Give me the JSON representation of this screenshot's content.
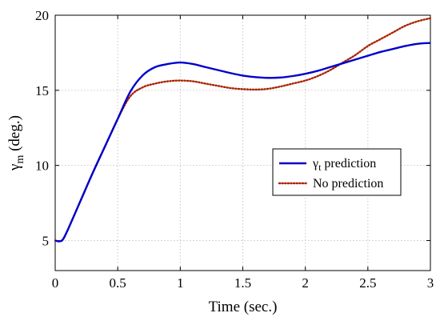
{
  "chart_data": {
    "type": "line",
    "xlabel": "Time (sec.)",
    "ylabel": {
      "main": "γ",
      "sub": "m",
      "rest": " (deg.)"
    },
    "xlim": [
      0,
      3
    ],
    "ylim": [
      3,
      20
    ],
    "xticks": [
      0,
      0.5,
      1,
      1.5,
      2,
      2.5,
      3
    ],
    "xtick_labels": [
      "0",
      "0.5",
      "1",
      "1.5",
      "2",
      "2.5",
      "3"
    ],
    "yticks": [
      5,
      10,
      15,
      20
    ],
    "ytick_labels": [
      "5",
      "10",
      "15",
      "20"
    ],
    "grid": true,
    "legend_position": "center-right",
    "series": [
      {
        "name": {
          "main": "γ",
          "sub": "t",
          "rest": " prediction"
        },
        "color": "#0000cc",
        "style": "solid",
        "x": [
          0,
          0.03,
          0.06,
          0.1,
          0.2,
          0.3,
          0.4,
          0.5,
          0.6,
          0.7,
          0.8,
          0.9,
          1.0,
          1.1,
          1.2,
          1.3,
          1.4,
          1.5,
          1.6,
          1.7,
          1.8,
          1.9,
          2.0,
          2.1,
          2.2,
          2.3,
          2.4,
          2.5,
          2.6,
          2.7,
          2.8,
          2.9,
          3.0
        ],
        "y": [
          5.0,
          4.95,
          5.05,
          5.7,
          7.6,
          9.5,
          11.3,
          13.1,
          14.9,
          16.0,
          16.55,
          16.75,
          16.85,
          16.75,
          16.55,
          16.35,
          16.15,
          15.98,
          15.88,
          15.83,
          15.85,
          15.95,
          16.1,
          16.3,
          16.55,
          16.8,
          17.05,
          17.3,
          17.55,
          17.75,
          17.95,
          18.1,
          18.15
        ]
      },
      {
        "name": "No prediction",
        "color": "#aa2200",
        "style": "dotted",
        "x": [
          0,
          0.03,
          0.06,
          0.1,
          0.2,
          0.3,
          0.4,
          0.5,
          0.6,
          0.7,
          0.8,
          0.9,
          1.0,
          1.1,
          1.2,
          1.3,
          1.4,
          1.5,
          1.6,
          1.7,
          1.8,
          1.9,
          2.0,
          2.1,
          2.2,
          2.3,
          2.4,
          2.5,
          2.6,
          2.7,
          2.8,
          2.9,
          3.0
        ],
        "y": [
          5.0,
          4.95,
          5.05,
          5.7,
          7.6,
          9.5,
          11.3,
          13.1,
          14.6,
          15.2,
          15.45,
          15.6,
          15.65,
          15.6,
          15.45,
          15.3,
          15.15,
          15.08,
          15.05,
          15.1,
          15.25,
          15.45,
          15.65,
          15.95,
          16.35,
          16.85,
          17.35,
          17.95,
          18.4,
          18.85,
          19.3,
          19.6,
          19.8
        ]
      }
    ]
  }
}
